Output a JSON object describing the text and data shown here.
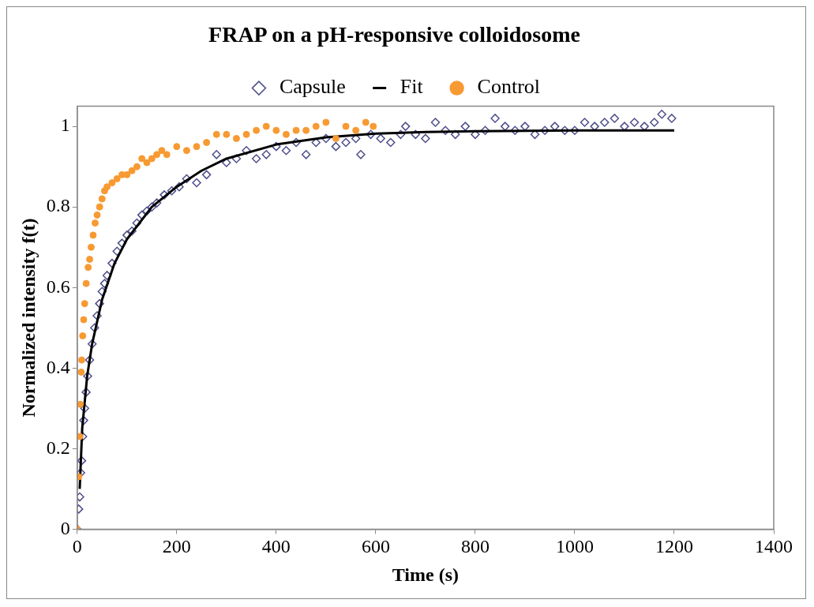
{
  "chart_data": {
    "type": "scatter",
    "title": "FRAP on a pH-responsive colloidosome",
    "xlabel": "Time (s)",
    "ylabel": "Normalized intensity f(t)",
    "legend": "top",
    "grid": false,
    "xlim": [
      0,
      1400
    ],
    "xticks": [
      0,
      200,
      400,
      600,
      800,
      1000,
      1200,
      1400
    ],
    "ylim": [
      0,
      1.05
    ],
    "yticks": [
      0,
      0.2,
      0.4,
      0.6,
      0.8,
      1
    ],
    "series": [
      {
        "name": "Capsule",
        "marker": "diamond",
        "color": "#4f4f8c",
        "x": [
          0,
          3,
          5,
          7,
          9,
          11,
          13,
          15,
          18,
          21,
          25,
          30,
          35,
          40,
          45,
          50,
          55,
          60,
          70,
          80,
          90,
          100,
          110,
          120,
          130,
          140,
          150,
          160,
          175,
          190,
          205,
          220,
          240,
          260,
          280,
          300,
          320,
          340,
          360,
          380,
          400,
          420,
          440,
          460,
          480,
          500,
          520,
          540,
          560,
          570,
          590,
          610,
          630,
          650,
          660,
          680,
          700,
          720,
          740,
          760,
          780,
          800,
          820,
          840,
          860,
          880,
          900,
          920,
          940,
          960,
          980,
          1000,
          1020,
          1040,
          1060,
          1080,
          1100,
          1120,
          1140,
          1160,
          1175,
          1195
        ],
        "values": [
          0,
          0.05,
          0.08,
          0.14,
          0.17,
          0.23,
          0.27,
          0.3,
          0.34,
          0.38,
          0.42,
          0.46,
          0.5,
          0.53,
          0.56,
          0.59,
          0.61,
          0.63,
          0.66,
          0.69,
          0.71,
          0.73,
          0.74,
          0.76,
          0.78,
          0.79,
          0.8,
          0.81,
          0.83,
          0.84,
          0.85,
          0.87,
          0.86,
          0.88,
          0.93,
          0.91,
          0.92,
          0.94,
          0.92,
          0.93,
          0.95,
          0.94,
          0.96,
          0.93,
          0.96,
          0.97,
          0.95,
          0.96,
          0.97,
          0.93,
          0.98,
          0.97,
          0.96,
          0.98,
          1,
          0.98,
          0.97,
          1.01,
          0.99,
          0.98,
          1,
          0.98,
          0.99,
          1.02,
          1,
          0.99,
          1,
          0.98,
          0.99,
          1,
          0.99,
          0.99,
          1.01,
          1,
          1.01,
          1.02,
          1,
          1.01,
          1,
          1.01,
          1.03,
          1.02
        ]
      },
      {
        "name": "Fit",
        "type": "line",
        "marker": "none",
        "line_style": "solid",
        "color": "#000000",
        "x": [
          5,
          10,
          20,
          30,
          50,
          75,
          100,
          150,
          200,
          250,
          300,
          400,
          500,
          600,
          700,
          800,
          1000,
          1200
        ],
        "values": [
          0.1,
          0.25,
          0.38,
          0.46,
          0.57,
          0.66,
          0.72,
          0.8,
          0.85,
          0.89,
          0.92,
          0.955,
          0.973,
          0.982,
          0.986,
          0.988,
          0.99,
          0.99
        ]
      },
      {
        "name": "Control",
        "marker": "circle",
        "color": "#f79a32",
        "x": [
          0,
          3,
          5,
          6,
          8,
          9,
          11,
          13,
          15,
          18,
          22,
          25,
          28,
          32,
          36,
          40,
          45,
          50,
          55,
          60,
          70,
          80,
          90,
          100,
          110,
          120,
          130,
          140,
          150,
          160,
          170,
          180,
          200,
          220,
          240,
          260,
          280,
          300,
          320,
          340,
          360,
          380,
          400,
          420,
          440,
          460,
          480,
          500,
          520,
          540,
          560,
          580,
          595
        ],
        "values": [
          0,
          0.13,
          0.23,
          0.31,
          0.39,
          0.42,
          0.48,
          0.52,
          0.56,
          0.61,
          0.65,
          0.67,
          0.7,
          0.73,
          0.76,
          0.78,
          0.8,
          0.82,
          0.84,
          0.85,
          0.86,
          0.87,
          0.88,
          0.88,
          0.89,
          0.9,
          0.92,
          0.91,
          0.92,
          0.93,
          0.94,
          0.93,
          0.95,
          0.94,
          0.95,
          0.96,
          0.98,
          0.98,
          0.97,
          0.98,
          0.99,
          1,
          0.99,
          0.98,
          0.99,
          0.99,
          1,
          1.01,
          0.97,
          1,
          0.99,
          1.01,
          1
        ]
      }
    ]
  }
}
